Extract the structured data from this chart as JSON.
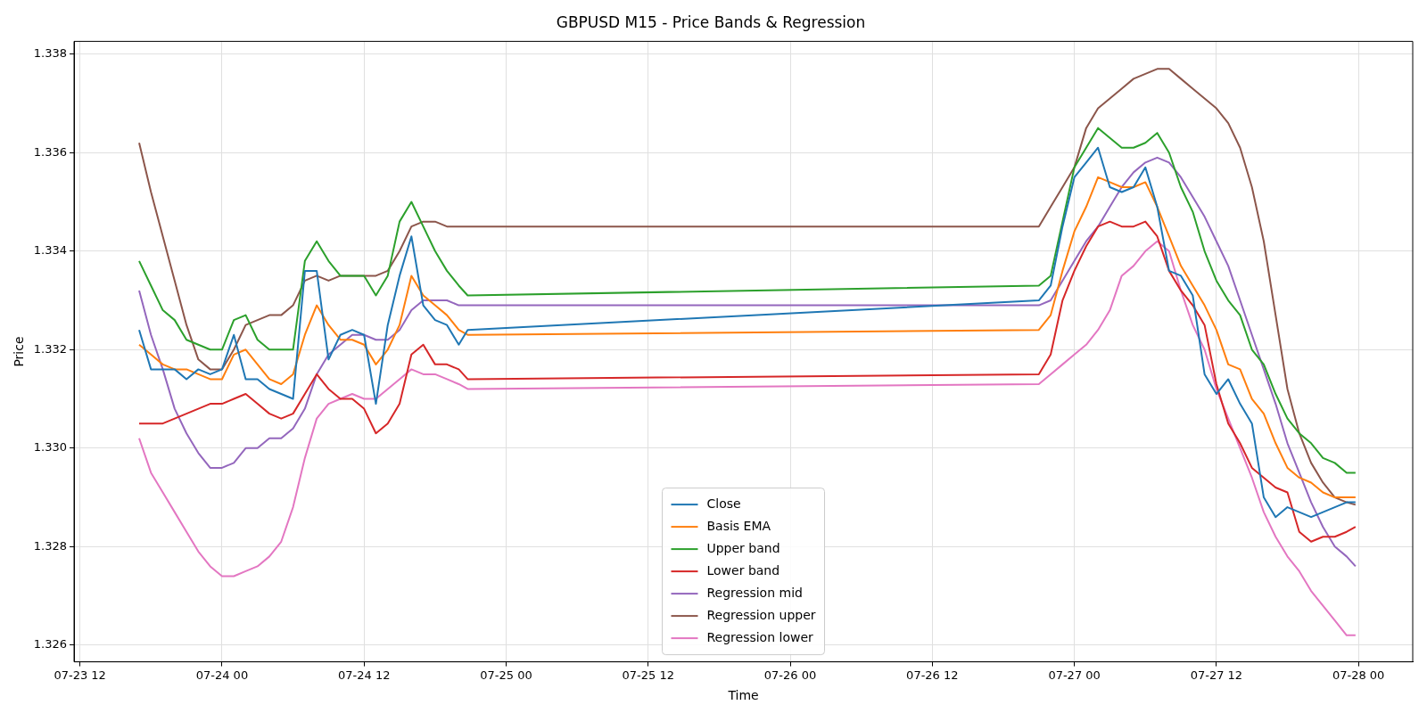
{
  "chart_data": {
    "type": "line",
    "title": "GBPUSD M15 - Price Bands & Regression",
    "xlabel": "Time",
    "ylabel": "Price",
    "x": [
      "--07-23T17:00",
      "--07-23T18:00",
      "--07-23T19:00",
      "--07-23T20:00",
      "--07-23T21:00",
      "--07-23T22:00",
      "--07-23T23:00",
      "--07-24T00:00",
      "--07-24T01:00",
      "--07-24T02:00",
      "--07-24T03:00",
      "--07-24T04:00",
      "--07-24T05:00",
      "--07-24T06:00",
      "--07-24T07:00",
      "--07-24T08:00",
      "--07-24T09:00",
      "--07-24T10:00",
      "--07-24T11:00",
      "--07-24T12:00",
      "--07-24T13:00",
      "--07-24T14:00",
      "--07-24T15:00",
      "--07-24T16:00",
      "--07-24T17:00",
      "--07-24T18:00",
      "--07-24T19:00",
      "--07-24T20:00",
      "--07-24T20:45",
      "--07-26T21:00",
      "--07-26T22:00",
      "--07-26T23:00",
      "--07-27T00:00",
      "--07-27T01:00",
      "--07-27T02:00",
      "--07-27T03:00",
      "--07-27T04:00",
      "--07-27T05:00",
      "--07-27T06:00",
      "--07-27T07:00",
      "--07-27T08:00",
      "--07-27T09:00",
      "--07-27T10:00",
      "--07-27T11:00",
      "--07-27T12:00",
      "--07-27T13:00",
      "--07-27T14:00",
      "--07-27T15:00",
      "--07-27T16:00",
      "--07-27T17:00",
      "--07-27T18:00",
      "--07-27T19:00",
      "--07-27T20:00",
      "--07-27T21:00",
      "--07-27T22:00",
      "--07-27T23:00",
      "--07-27T23:45"
    ],
    "series": [
      {
        "name": "Close",
        "color": "#1f77b4",
        "values": [
          1.3324,
          1.3316,
          1.3316,
          1.3316,
          1.3314,
          1.3316,
          1.3315,
          1.3316,
          1.3323,
          1.3314,
          1.3314,
          1.3312,
          1.3311,
          1.331,
          1.3336,
          1.3336,
          1.3318,
          1.3323,
          1.3324,
          1.3323,
          1.3309,
          1.3325,
          1.3335,
          1.3343,
          1.3329,
          1.3326,
          1.3325,
          1.3321,
          1.3324,
          1.333,
          1.3333,
          1.3345,
          1.3355,
          1.3358,
          1.3361,
          1.3353,
          1.3352,
          1.3353,
          1.3357,
          1.3349,
          1.3336,
          1.3335,
          1.3331,
          1.3315,
          1.3311,
          1.3314,
          1.3309,
          1.3305,
          1.329,
          1.3286,
          1.3288,
          1.3287,
          1.3286,
          1.3287,
          1.3288,
          1.3289,
          1.3289
        ]
      },
      {
        "name": "Basis EMA",
        "color": "#ff7f0e",
        "values": [
          1.3321,
          1.3319,
          1.3317,
          1.3316,
          1.3316,
          1.3315,
          1.3314,
          1.3314,
          1.3319,
          1.332,
          1.3317,
          1.3314,
          1.3313,
          1.3315,
          1.3323,
          1.3329,
          1.3325,
          1.3322,
          1.3322,
          1.3321,
          1.3317,
          1.332,
          1.3325,
          1.3335,
          1.3331,
          1.3329,
          1.3327,
          1.3324,
          1.3323,
          1.3324,
          1.3327,
          1.3336,
          1.3344,
          1.3349,
          1.3355,
          1.3354,
          1.3353,
          1.3353,
          1.3354,
          1.3349,
          1.3343,
          1.3337,
          1.3333,
          1.3329,
          1.3324,
          1.3317,
          1.3316,
          1.331,
          1.3307,
          1.3301,
          1.3296,
          1.3294,
          1.3293,
          1.3291,
          1.329,
          1.329,
          1.329
        ]
      },
      {
        "name": "Upper band",
        "color": "#2ca02c",
        "values": [
          1.3338,
          1.3333,
          1.3328,
          1.3326,
          1.3322,
          1.3321,
          1.332,
          1.332,
          1.3326,
          1.3327,
          1.3322,
          1.332,
          1.332,
          1.332,
          1.3338,
          1.3342,
          1.3338,
          1.3335,
          1.3335,
          1.3335,
          1.3331,
          1.3335,
          1.3346,
          1.335,
          1.3345,
          1.334,
          1.3336,
          1.3333,
          1.3331,
          1.3333,
          1.3335,
          1.3346,
          1.3357,
          1.3361,
          1.3365,
          1.3363,
          1.3361,
          1.3361,
          1.3362,
          1.3364,
          1.336,
          1.3353,
          1.3348,
          1.334,
          1.3334,
          1.333,
          1.3327,
          1.332,
          1.3317,
          1.3311,
          1.3306,
          1.3303,
          1.3301,
          1.3298,
          1.3297,
          1.3295,
          1.3295
        ]
      },
      {
        "name": "Lower band",
        "color": "#d62728",
        "values": [
          1.3305,
          1.3305,
          1.3305,
          1.3306,
          1.3307,
          1.3308,
          1.3309,
          1.3309,
          1.331,
          1.3311,
          1.3309,
          1.3307,
          1.3306,
          1.3307,
          1.3311,
          1.3315,
          1.3312,
          1.331,
          1.331,
          1.3308,
          1.3303,
          1.3305,
          1.3309,
          1.3319,
          1.3321,
          1.3317,
          1.3317,
          1.3316,
          1.3314,
          1.3315,
          1.3319,
          1.333,
          1.3336,
          1.3341,
          1.3345,
          1.3346,
          1.3345,
          1.3345,
          1.3346,
          1.3343,
          1.3336,
          1.3332,
          1.3329,
          1.3325,
          1.3313,
          1.3305,
          1.3301,
          1.3296,
          1.3294,
          1.3292,
          1.3291,
          1.3283,
          1.3281,
          1.3282,
          1.3282,
          1.3283,
          1.3284
        ]
      },
      {
        "name": "Regression mid",
        "color": "#9467bd",
        "values": [
          1.3332,
          1.3323,
          1.3316,
          1.3308,
          1.3303,
          1.3299,
          1.3296,
          1.3296,
          1.3297,
          1.33,
          1.33,
          1.3302,
          1.3302,
          1.3304,
          1.3308,
          1.3315,
          1.3319,
          1.3321,
          1.3323,
          1.3323,
          1.3322,
          1.3322,
          1.3324,
          1.3328,
          1.333,
          1.333,
          1.333,
          1.3329,
          1.3329,
          1.3329,
          1.333,
          1.3334,
          1.3338,
          1.3342,
          1.3345,
          1.3349,
          1.3353,
          1.3356,
          1.3358,
          1.3359,
          1.3358,
          1.3355,
          1.3351,
          1.3347,
          1.3342,
          1.3337,
          1.333,
          1.3323,
          1.3316,
          1.3309,
          1.3301,
          1.3295,
          1.3289,
          1.3284,
          1.328,
          1.3278,
          1.3276
        ]
      },
      {
        "name": "Regression upper",
        "color": "#8c564b",
        "values": [
          1.3362,
          1.3352,
          1.3343,
          1.3334,
          1.3325,
          1.3318,
          1.3316,
          1.3316,
          1.332,
          1.3325,
          1.3326,
          1.3327,
          1.3327,
          1.3329,
          1.3334,
          1.3335,
          1.3334,
          1.3335,
          1.3335,
          1.3335,
          1.3335,
          1.3336,
          1.334,
          1.3345,
          1.3346,
          1.3346,
          1.3345,
          1.3345,
          1.3345,
          1.3345,
          1.3349,
          1.3353,
          1.3357,
          1.3365,
          1.3369,
          1.3371,
          1.3373,
          1.3375,
          1.3376,
          1.3377,
          1.3377,
          1.3375,
          1.3373,
          1.3371,
          1.3369,
          1.3366,
          1.3361,
          1.3353,
          1.3342,
          1.3327,
          1.3312,
          1.3303,
          1.3297,
          1.3293,
          1.329,
          1.3289,
          1.32885
        ]
      },
      {
        "name": "Regression lower",
        "color": "#e377c2",
        "values": [
          1.3302,
          1.3295,
          1.3291,
          1.3287,
          1.3283,
          1.3279,
          1.3276,
          1.3274,
          1.3274,
          1.3275,
          1.3276,
          1.3278,
          1.3281,
          1.3288,
          1.3298,
          1.3306,
          1.3309,
          1.331,
          1.3311,
          1.331,
          1.331,
          1.3312,
          1.3314,
          1.3316,
          1.3315,
          1.3315,
          1.3314,
          1.3313,
          1.3312,
          1.3313,
          1.3315,
          1.3317,
          1.3319,
          1.3321,
          1.3324,
          1.3328,
          1.3335,
          1.3337,
          1.334,
          1.3342,
          1.334,
          1.3332,
          1.3325,
          1.332,
          1.3312,
          1.3306,
          1.33,
          1.3294,
          1.3287,
          1.3282,
          1.3278,
          1.3275,
          1.3271,
          1.3268,
          1.3265,
          1.3262,
          1.3262
        ]
      }
    ],
    "xlim": [
      "--07-23T11:30",
      "--07-28T04:35"
    ],
    "xticks": [
      {
        "value": "--07-23T12:00",
        "label": "07-23 12"
      },
      {
        "value": "--07-24T00:00",
        "label": "07-24 00"
      },
      {
        "value": "--07-24T12:00",
        "label": "07-24 12"
      },
      {
        "value": "--07-25T00:00",
        "label": "07-25 00"
      },
      {
        "value": "--07-25T12:00",
        "label": "07-25 12"
      },
      {
        "value": "--07-26T00:00",
        "label": "07-26 00"
      },
      {
        "value": "--07-26T12:00",
        "label": "07-26 12"
      },
      {
        "value": "--07-27T00:00",
        "label": "07-27 00"
      },
      {
        "value": "--07-27T12:00",
        "label": "07-27 12"
      },
      {
        "value": "--07-28T00:00",
        "label": "07-28 00"
      }
    ],
    "ylim": [
      1.32566,
      1.33826
    ],
    "yticks": [
      {
        "value": 1.326,
        "label": "1.326"
      },
      {
        "value": 1.328,
        "label": "1.328"
      },
      {
        "value": 1.33,
        "label": "1.330"
      },
      {
        "value": 1.332,
        "label": "1.332"
      },
      {
        "value": 1.334,
        "label": "1.334"
      },
      {
        "value": 1.336,
        "label": "1.336"
      },
      {
        "value": 1.338,
        "label": "1.338"
      }
    ],
    "grid": true,
    "legend": "bottom",
    "marker": "none",
    "line_style": "solid"
  }
}
